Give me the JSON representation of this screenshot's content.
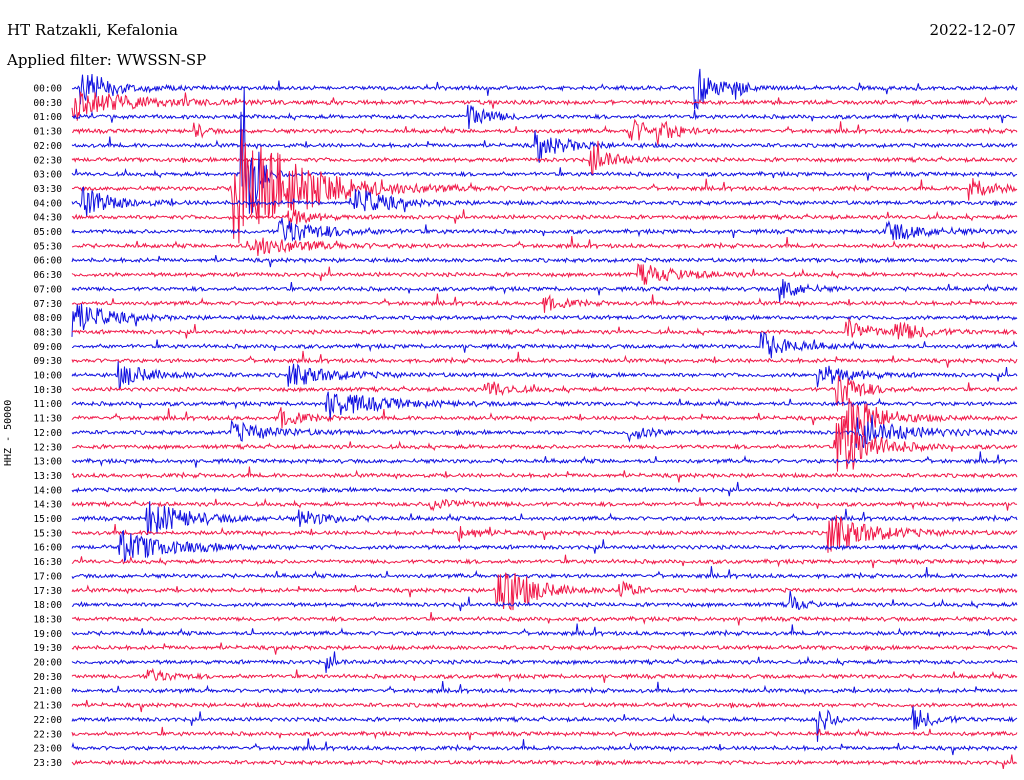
{
  "header": {
    "station": "HT Ratzakli, Kefalonia",
    "filter": "Applied filter: WWSSN-SP",
    "date": "2022-12-07"
  },
  "chart_data": {
    "type": "line",
    "ylabel": "HHZ - 50000",
    "row_labels": [
      "00:00",
      "00:30",
      "01:00",
      "01:30",
      "02:00",
      "02:30",
      "03:00",
      "03:30",
      "04:00",
      "04:30",
      "05:00",
      "05:30",
      "06:00",
      "06:30",
      "07:00",
      "07:30",
      "08:00",
      "08:30",
      "09:00",
      "09:30",
      "10:00",
      "10:30",
      "11:00",
      "11:30",
      "12:00",
      "12:30",
      "13:00",
      "13:30",
      "14:00",
      "14:30",
      "15:00",
      "15:30",
      "16:00",
      "16:30",
      "17:00",
      "17:30",
      "18:00",
      "18:30",
      "19:00",
      "19:30",
      "20:00",
      "20:30",
      "21:00",
      "21:30",
      "22:00",
      "22:30",
      "23:00",
      "23:30"
    ],
    "trace_minutes": 30,
    "series_colors": [
      "#1010e0",
      "#f01848"
    ],
    "grid": false,
    "events": [
      {
        "row": 0,
        "t": 0.01,
        "amp": 18,
        "len": 0.03
      },
      {
        "row": 0,
        "t": 0.66,
        "amp": 22,
        "len": 0.02
      },
      {
        "row": 0,
        "t": 0.7,
        "amp": 10,
        "len": 0.01
      },
      {
        "row": 1,
        "t": 0.0,
        "amp": 14,
        "len": 0.06
      },
      {
        "row": 2,
        "t": 0.42,
        "amp": 14,
        "len": 0.02
      },
      {
        "row": 3,
        "t": 0.13,
        "amp": 8,
        "len": 0.01
      },
      {
        "row": 3,
        "t": 0.59,
        "amp": 14,
        "len": 0.02
      },
      {
        "row": 3,
        "t": 0.62,
        "amp": 9,
        "len": 0.02
      },
      {
        "row": 4,
        "t": 0.49,
        "amp": 14,
        "len": 0.03
      },
      {
        "row": 5,
        "t": 0.55,
        "amp": 16,
        "len": 0.02
      },
      {
        "row": 6,
        "t": 0.18,
        "amp": 130,
        "len": 0.01
      },
      {
        "row": 7,
        "t": 0.17,
        "amp": 75,
        "len": 0.06
      },
      {
        "row": 7,
        "t": 0.95,
        "amp": 14,
        "len": 0.02
      },
      {
        "row": 8,
        "t": 0.01,
        "amp": 16,
        "len": 0.03
      },
      {
        "row": 8,
        "t": 0.3,
        "amp": 16,
        "len": 0.03
      },
      {
        "row": 9,
        "t": 0.23,
        "amp": 10,
        "len": 0.02
      },
      {
        "row": 10,
        "t": 0.22,
        "amp": 14,
        "len": 0.04
      },
      {
        "row": 10,
        "t": 0.86,
        "amp": 10,
        "len": 0.04
      },
      {
        "row": 11,
        "t": 0.19,
        "amp": 10,
        "len": 0.05
      },
      {
        "row": 13,
        "t": 0.6,
        "amp": 10,
        "len": 0.04
      },
      {
        "row": 14,
        "t": 0.75,
        "amp": 12,
        "len": 0.02
      },
      {
        "row": 15,
        "t": 0.5,
        "amp": 8,
        "len": 0.02
      },
      {
        "row": 16,
        "t": 0.0,
        "amp": 20,
        "len": 0.03
      },
      {
        "row": 17,
        "t": 0.82,
        "amp": 14,
        "len": 0.02
      },
      {
        "row": 17,
        "t": 0.87,
        "amp": 10,
        "len": 0.03
      },
      {
        "row": 18,
        "t": 0.73,
        "amp": 14,
        "len": 0.03
      },
      {
        "row": 20,
        "t": 0.05,
        "amp": 12,
        "len": 0.03
      },
      {
        "row": 20,
        "t": 0.23,
        "amp": 12,
        "len": 0.04
      },
      {
        "row": 20,
        "t": 0.79,
        "amp": 12,
        "len": 0.03
      },
      {
        "row": 21,
        "t": 0.44,
        "amp": 10,
        "len": 0.02
      },
      {
        "row": 21,
        "t": 0.81,
        "amp": 22,
        "len": 0.02
      },
      {
        "row": 22,
        "t": 0.27,
        "amp": 14,
        "len": 0.05
      },
      {
        "row": 23,
        "t": 0.22,
        "amp": 10,
        "len": 0.02
      },
      {
        "row": 23,
        "t": 0.82,
        "amp": 30,
        "len": 0.03
      },
      {
        "row": 24,
        "t": 0.17,
        "amp": 10,
        "len": 0.04
      },
      {
        "row": 24,
        "t": 0.59,
        "amp": 8,
        "len": 0.02
      },
      {
        "row": 24,
        "t": 0.83,
        "amp": 14,
        "len": 0.05
      },
      {
        "row": 25,
        "t": 0.81,
        "amp": 38,
        "len": 0.03
      },
      {
        "row": 29,
        "t": 0.38,
        "amp": 6,
        "len": 0.03
      },
      {
        "row": 30,
        "t": 0.08,
        "amp": 18,
        "len": 0.04
      },
      {
        "row": 30,
        "t": 0.24,
        "amp": 8,
        "len": 0.03
      },
      {
        "row": 31,
        "t": 0.41,
        "amp": 8,
        "len": 0.02
      },
      {
        "row": 31,
        "t": 0.8,
        "amp": 22,
        "len": 0.04
      },
      {
        "row": 32,
        "t": 0.05,
        "amp": 16,
        "len": 0.05
      },
      {
        "row": 35,
        "t": 0.45,
        "amp": 34,
        "len": 0.03
      },
      {
        "row": 35,
        "t": 0.58,
        "amp": 14,
        "len": 0.01
      },
      {
        "row": 36,
        "t": 0.76,
        "amp": 12,
        "len": 0.01
      },
      {
        "row": 40,
        "t": 0.27,
        "amp": 6,
        "len": 0.01
      },
      {
        "row": 41,
        "t": 0.08,
        "amp": 8,
        "len": 0.02
      },
      {
        "row": 44,
        "t": 0.79,
        "amp": 22,
        "len": 0.01
      },
      {
        "row": 44,
        "t": 0.89,
        "amp": 12,
        "len": 0.02
      }
    ]
  }
}
